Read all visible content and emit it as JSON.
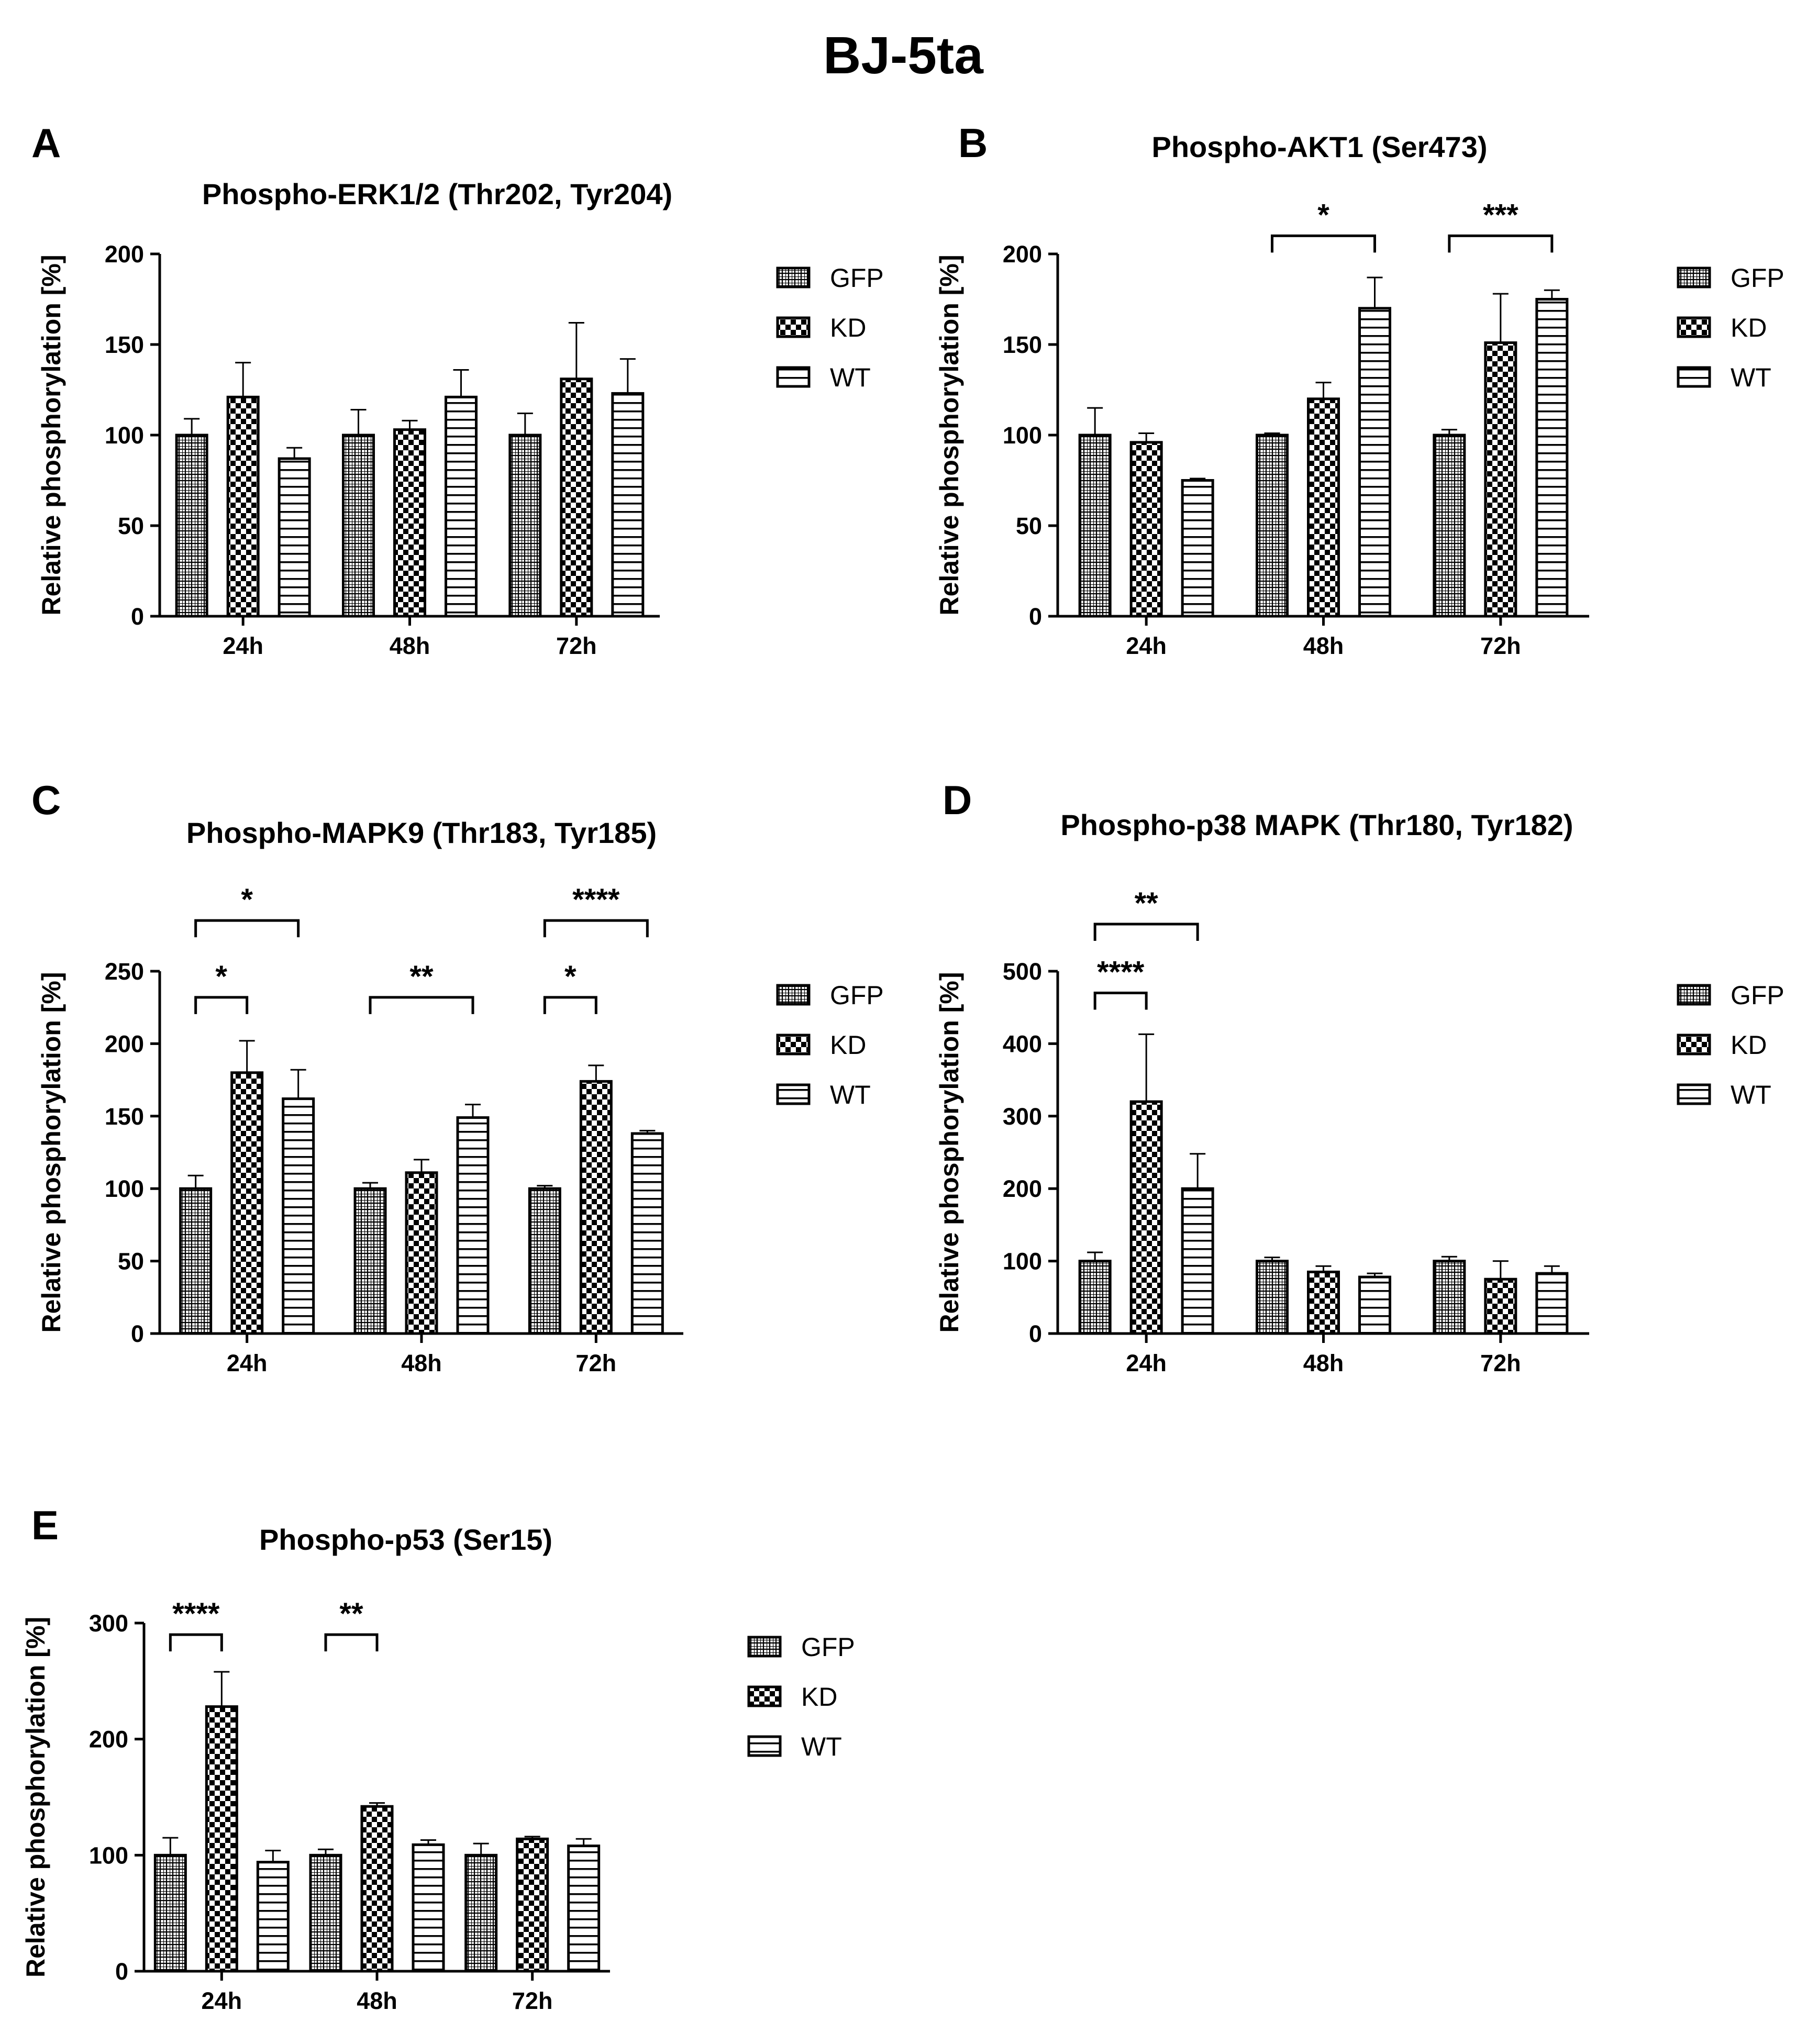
{
  "figure_title": "BJ-5ta",
  "legend_entries": [
    "GFP",
    "KD",
    "WT"
  ],
  "colors": {
    "ink": "#000000",
    "background": "#ffffff"
  },
  "chart_data": [
    {
      "panel": "A",
      "type": "bar",
      "title": "Phospho-ERK1/2 (Thr202, Tyr204)",
      "xlabel": "",
      "ylabel": "Relative phosphorylation [%]",
      "ylim": [
        0,
        200
      ],
      "yticks": [
        0,
        50,
        100,
        150,
        200
      ],
      "categories": [
        "24h",
        "48h",
        "72h"
      ],
      "series": [
        {
          "name": "GFP",
          "pattern": "grid",
          "values": [
            100,
            100,
            100
          ],
          "errors": [
            9,
            14,
            12
          ]
        },
        {
          "name": "KD",
          "pattern": "checker",
          "values": [
            121,
            103,
            131
          ],
          "errors": [
            19,
            5,
            31
          ]
        },
        {
          "name": "WT",
          "pattern": "hlines",
          "values": [
            87,
            121,
            123
          ],
          "errors": [
            6,
            15,
            19
          ]
        }
      ],
      "significance": [],
      "legend": "right"
    },
    {
      "panel": "B",
      "type": "bar",
      "title": "Phospho-AKT1 (Ser473)",
      "xlabel": "",
      "ylabel": "Relative phosphorylation [%]",
      "ylim": [
        0,
        200
      ],
      "yticks": [
        0,
        50,
        100,
        150,
        200
      ],
      "categories": [
        "24h",
        "48h",
        "72h"
      ],
      "series": [
        {
          "name": "GFP",
          "pattern": "grid",
          "values": [
            100,
            100,
            100
          ],
          "errors": [
            15,
            1,
            3
          ]
        },
        {
          "name": "KD",
          "pattern": "checker",
          "values": [
            96,
            120,
            151
          ],
          "errors": [
            5,
            9,
            27
          ]
        },
        {
          "name": "WT",
          "pattern": "hlines",
          "values": [
            75,
            170,
            175
          ],
          "errors": [
            1,
            17,
            5
          ]
        }
      ],
      "significance": [
        {
          "category": 1,
          "from": 0,
          "to": 2,
          "label": "*",
          "level": 210
        },
        {
          "category": 2,
          "from": 0,
          "to": 2,
          "label": "***",
          "level": 210
        }
      ],
      "legend": "right"
    },
    {
      "panel": "C",
      "type": "bar",
      "title": "Phospho-MAPK9 (Thr183, Tyr185)",
      "xlabel": "",
      "ylabel": "Relative phosphorylation [%]",
      "ylim": [
        0,
        250
      ],
      "yticks": [
        0,
        50,
        100,
        150,
        200,
        250
      ],
      "categories": [
        "24h",
        "48h",
        "72h"
      ],
      "series": [
        {
          "name": "GFP",
          "pattern": "grid",
          "values": [
            100,
            100,
            100
          ],
          "errors": [
            9,
            4,
            2
          ]
        },
        {
          "name": "KD",
          "pattern": "checker",
          "values": [
            180,
            111,
            174
          ],
          "errors": [
            22,
            9,
            11
          ]
        },
        {
          "name": "WT",
          "pattern": "hlines",
          "values": [
            162,
            149,
            138
          ],
          "errors": [
            20,
            9,
            2
          ]
        }
      ],
      "significance": [
        {
          "category": 0,
          "from": 0,
          "to": 1,
          "label": "*",
          "level": 232
        },
        {
          "category": 0,
          "from": 0,
          "to": 2,
          "label": "*",
          "level": 285
        },
        {
          "category": 1,
          "from": 0,
          "to": 2,
          "label": "**",
          "level": 232
        },
        {
          "category": 2,
          "from": 0,
          "to": 1,
          "label": "*",
          "level": 232
        },
        {
          "category": 2,
          "from": 0,
          "to": 2,
          "label": "****",
          "level": 285
        }
      ],
      "legend": "right"
    },
    {
      "panel": "D",
      "type": "bar",
      "title": "Phospho-p38 MAPK (Thr180, Tyr182)",
      "xlabel": "",
      "ylabel": "Relative phosphorylation [%]",
      "ylim": [
        0,
        500
      ],
      "yticks": [
        0,
        100,
        200,
        300,
        400,
        500
      ],
      "categories": [
        "24h",
        "48h",
        "72h"
      ],
      "series": [
        {
          "name": "GFP",
          "pattern": "grid",
          "values": [
            100,
            100,
            100
          ],
          "errors": [
            12,
            5,
            6
          ]
        },
        {
          "name": "KD",
          "pattern": "checker",
          "values": [
            320,
            85,
            75
          ],
          "errors": [
            93,
            8,
            25
          ]
        },
        {
          "name": "WT",
          "pattern": "hlines",
          "values": [
            200,
            78,
            83
          ],
          "errors": [
            48,
            5,
            10
          ]
        }
      ],
      "significance": [
        {
          "category": 0,
          "from": 0,
          "to": 1,
          "label": "****",
          "level": 470
        },
        {
          "category": 0,
          "from": 0,
          "to": 2,
          "label": "**",
          "level": 565
        }
      ],
      "legend": "right"
    },
    {
      "panel": "E",
      "type": "bar",
      "title": "Phospho-p53 (Ser15)",
      "xlabel": "",
      "ylabel": "Relative phosphorylation [%]",
      "ylim": [
        0,
        300
      ],
      "yticks": [
        0,
        100,
        200,
        300
      ],
      "categories": [
        "24h",
        "48h",
        "72h"
      ],
      "series": [
        {
          "name": "GFP",
          "pattern": "grid",
          "values": [
            100,
            100,
            100
          ],
          "errors": [
            15,
            5,
            10
          ]
        },
        {
          "name": "KD",
          "pattern": "checker",
          "values": [
            228,
            142,
            114
          ],
          "errors": [
            30,
            3,
            2
          ]
        },
        {
          "name": "WT",
          "pattern": "hlines",
          "values": [
            94,
            109,
            108
          ],
          "errors": [
            10,
            4,
            6
          ]
        }
      ],
      "significance": [
        {
          "category": 0,
          "from": 0,
          "to": 1,
          "label": "****",
          "level": 290
        },
        {
          "category": 1,
          "from": 0,
          "to": 1,
          "label": "**",
          "level": 290
        }
      ],
      "legend": "right"
    }
  ]
}
